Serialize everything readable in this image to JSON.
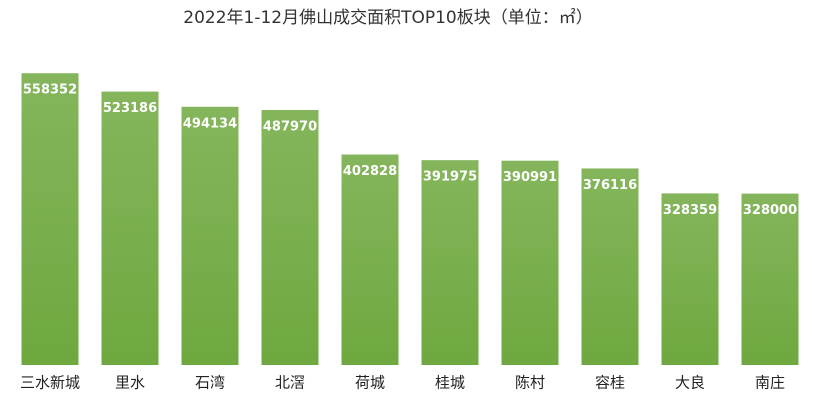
{
  "chart_data": {
    "type": "bar",
    "title": "2022年1-12月佛山成交面积TOP10板块（单位：㎡）",
    "categories": [
      "三水新城",
      "里水",
      "石湾",
      "北滘",
      "荷城",
      "桂城",
      "陈村",
      "容桂",
      "大良",
      "南庄"
    ],
    "values": [
      558352,
      523186,
      494134,
      487970,
      402828,
      391975,
      390991,
      376116,
      328359,
      328000
    ],
    "color": "#6fa83f",
    "ylim": [
      0,
      620000
    ]
  }
}
